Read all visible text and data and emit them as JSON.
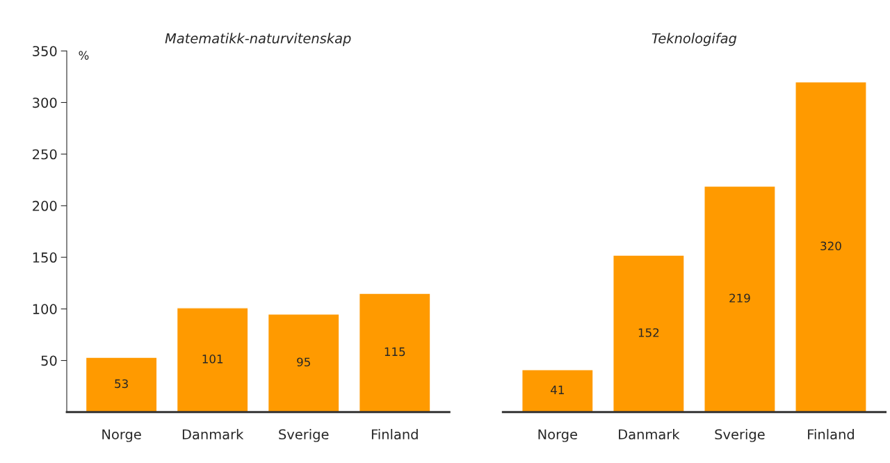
{
  "chart_data": [
    {
      "type": "bar",
      "title": "Matematikk-naturvitenskap",
      "ylabel": "%",
      "categories": [
        "Norge",
        "Danmark",
        "Sverige",
        "Finland"
      ],
      "values": [
        53,
        101,
        95,
        115
      ],
      "color": "#ff9a00",
      "ylim": [
        0,
        350
      ],
      "yticks": [
        50,
        100,
        150,
        200,
        250,
        300,
        350
      ],
      "data_labels": true,
      "grid": false,
      "legend": false
    },
    {
      "type": "bar",
      "title": "Teknologifag",
      "categories": [
        "Norge",
        "Danmark",
        "Sverige",
        "Finland"
      ],
      "values": [
        41,
        152,
        219,
        320
      ],
      "color": "#ff9a00",
      "ylim": [
        0,
        350
      ],
      "yticks": [
        50,
        100,
        150,
        200,
        250,
        300,
        350
      ],
      "data_labels": true,
      "grid": false,
      "legend": false,
      "tick_labels": "x"
    }
  ]
}
